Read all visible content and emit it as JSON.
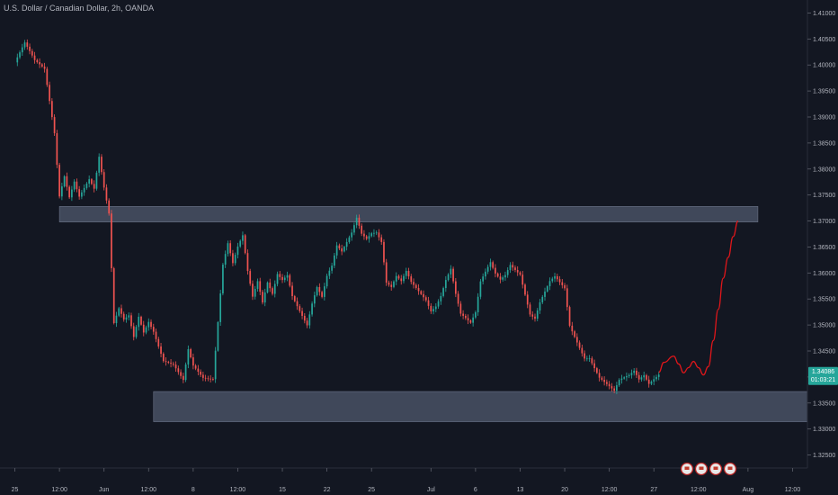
{
  "header": {
    "title": "U.S. Dollar / Canadian Dollar, 2h, OANDA"
  },
  "price_label": {
    "price": "1.34086",
    "countdown": "01:03:21"
  },
  "colors": {
    "background": "#131722",
    "up": "#26a69a",
    "down": "#ef5350",
    "zone": "#4a5366",
    "projection": "#e0161a",
    "price_tag": "#26a69a"
  },
  "event_icons": [
    "flag-icon",
    "flag-icon",
    "flag-icon",
    "flag-icon",
    "flag-icon"
  ],
  "chart_data": {
    "type": "candlestick",
    "title": "U.S. Dollar / Canadian Dollar, 2h, OANDA",
    "ylim": [
      1.3225,
      1.4125
    ],
    "y_ticks": [
      "1.41000",
      "1.40500",
      "1.40000",
      "1.39500",
      "1.39000",
      "1.38500",
      "1.38000",
      "1.37500",
      "1.37000",
      "1.36500",
      "1.36000",
      "1.35500",
      "1.35000",
      "1.34500",
      "1.34000",
      "1.33500",
      "1.33000",
      "1.32500"
    ],
    "y_tick_values": [
      1.41,
      1.405,
      1.4,
      1.395,
      1.39,
      1.385,
      1.38,
      1.375,
      1.37,
      1.365,
      1.36,
      1.355,
      1.35,
      1.345,
      1.34,
      1.335,
      1.33,
      1.325
    ],
    "x_ticks": [
      "25",
      "12:00",
      "Jun",
      "12:00",
      "8",
      "12:00",
      "15",
      "22",
      "25",
      "Jul",
      "6",
      "13",
      "20",
      "12:00",
      "27",
      "12:00",
      "Aug",
      "12:00"
    ],
    "x_tick_index": [
      0,
      9,
      18,
      27,
      36,
      45,
      54,
      63,
      72,
      84,
      93,
      102,
      111,
      120,
      129,
      138,
      148,
      157
    ],
    "x_range_index": [
      -3,
      160
    ],
    "last_index": 130,
    "zones": [
      {
        "name": "resistance",
        "y_from": 1.3698,
        "y_to": 1.3728,
        "x_from_index": 9,
        "x_to_index": 150
      },
      {
        "name": "support",
        "y_from": 1.3314,
        "y_to": 1.3372,
        "x_from_index": 28,
        "x_to_index": 160
      }
    ],
    "price_path": [
      [
        0,
        1.4005
      ],
      [
        2,
        1.404
      ],
      [
        4,
        1.4005
      ],
      [
        6,
        1.399
      ],
      [
        7,
        1.393
      ],
      [
        8,
        1.387
      ],
      [
        9,
        1.375
      ],
      [
        10,
        1.379
      ],
      [
        11,
        1.375
      ],
      [
        12,
        1.378
      ],
      [
        13,
        1.375
      ],
      [
        15,
        1.378
      ],
      [
        16,
        1.376
      ],
      [
        17,
        1.382
      ],
      [
        18,
        1.376
      ],
      [
        19,
        1.371
      ],
      [
        20,
        1.35
      ],
      [
        21,
        1.353
      ],
      [
        22,
        1.351
      ],
      [
        23,
        1.352
      ],
      [
        24,
        1.348
      ],
      [
        25,
        1.352
      ],
      [
        26,
        1.349
      ],
      [
        27,
        1.351
      ],
      [
        28,
        1.349
      ],
      [
        30,
        1.343
      ],
      [
        32,
        1.342
      ],
      [
        34,
        1.339
      ],
      [
        35,
        1.345
      ],
      [
        36,
        1.342
      ],
      [
        38,
        1.34
      ],
      [
        40,
        1.34
      ],
      [
        41,
        1.351
      ],
      [
        42,
        1.362
      ],
      [
        43,
        1.366
      ],
      [
        44,
        1.362
      ],
      [
        45,
        1.365
      ],
      [
        46,
        1.367
      ],
      [
        47,
        1.36
      ],
      [
        48,
        1.355
      ],
      [
        49,
        1.358
      ],
      [
        50,
        1.354
      ],
      [
        51,
        1.358
      ],
      [
        52,
        1.356
      ],
      [
        53,
        1.36
      ],
      [
        54,
        1.359
      ],
      [
        55,
        1.36
      ],
      [
        56,
        1.356
      ],
      [
        57,
        1.354
      ],
      [
        58,
        1.352
      ],
      [
        59,
        1.35
      ],
      [
        60,
        1.354
      ],
      [
        61,
        1.357
      ],
      [
        62,
        1.355
      ],
      [
        63,
        1.359
      ],
      [
        64,
        1.361
      ],
      [
        65,
        1.365
      ],
      [
        66,
        1.364
      ],
      [
        67,
        1.366
      ],
      [
        68,
        1.368
      ],
      [
        69,
        1.371
      ],
      [
        70,
        1.368
      ],
      [
        71,
        1.367
      ],
      [
        72,
        1.368
      ],
      [
        73,
        1.368
      ],
      [
        74,
        1.366
      ],
      [
        75,
        1.358
      ],
      [
        76,
        1.357
      ],
      [
        77,
        1.359
      ],
      [
        78,
        1.358
      ],
      [
        79,
        1.36
      ],
      [
        80,
        1.358
      ],
      [
        81,
        1.357
      ],
      [
        82,
        1.356
      ],
      [
        83,
        1.355
      ],
      [
        84,
        1.353
      ],
      [
        85,
        1.354
      ],
      [
        86,
        1.356
      ],
      [
        87,
        1.359
      ],
      [
        88,
        1.361
      ],
      [
        89,
        1.356
      ],
      [
        90,
        1.352
      ],
      [
        91,
        1.351
      ],
      [
        92,
        1.35
      ],
      [
        93,
        1.352
      ],
      [
        94,
        1.358
      ],
      [
        95,
        1.36
      ],
      [
        96,
        1.362
      ],
      [
        97,
        1.36
      ],
      [
        98,
        1.359
      ],
      [
        99,
        1.36
      ],
      [
        100,
        1.362
      ],
      [
        101,
        1.361
      ],
      [
        102,
        1.36
      ],
      [
        103,
        1.356
      ],
      [
        104,
        1.352
      ],
      [
        105,
        1.351
      ],
      [
        106,
        1.354
      ],
      [
        107,
        1.356
      ],
      [
        108,
        1.358
      ],
      [
        109,
        1.359
      ],
      [
        110,
        1.358
      ],
      [
        111,
        1.357
      ],
      [
        112,
        1.35
      ],
      [
        113,
        1.348
      ],
      [
        114,
        1.346
      ],
      [
        115,
        1.344
      ],
      [
        116,
        1.344
      ],
      [
        117,
        1.342
      ],
      [
        118,
        1.34
      ],
      [
        119,
        1.339
      ],
      [
        120,
        1.338
      ],
      [
        121,
        1.337
      ],
      [
        122,
        1.339
      ],
      [
        123,
        1.3395
      ],
      [
        124,
        1.34
      ],
      [
        125,
        1.341
      ],
      [
        126,
        1.3395
      ],
      [
        127,
        1.3405
      ],
      [
        128,
        1.339
      ],
      [
        129,
        1.34
      ],
      [
        130,
        1.3409
      ]
    ],
    "projection": [
      [
        130,
        1.3409
      ],
      [
        131,
        1.3428
      ],
      [
        133,
        1.344
      ],
      [
        134,
        1.3425
      ],
      [
        135,
        1.3408
      ],
      [
        136,
        1.3418
      ],
      [
        137,
        1.343
      ],
      [
        138,
        1.3418
      ],
      [
        139,
        1.3404
      ],
      [
        140,
        1.342
      ],
      [
        141,
        1.347
      ],
      [
        142,
        1.353
      ],
      [
        143,
        1.359
      ],
      [
        144,
        1.363
      ],
      [
        145,
        1.367
      ],
      [
        146,
        1.37
      ]
    ]
  }
}
